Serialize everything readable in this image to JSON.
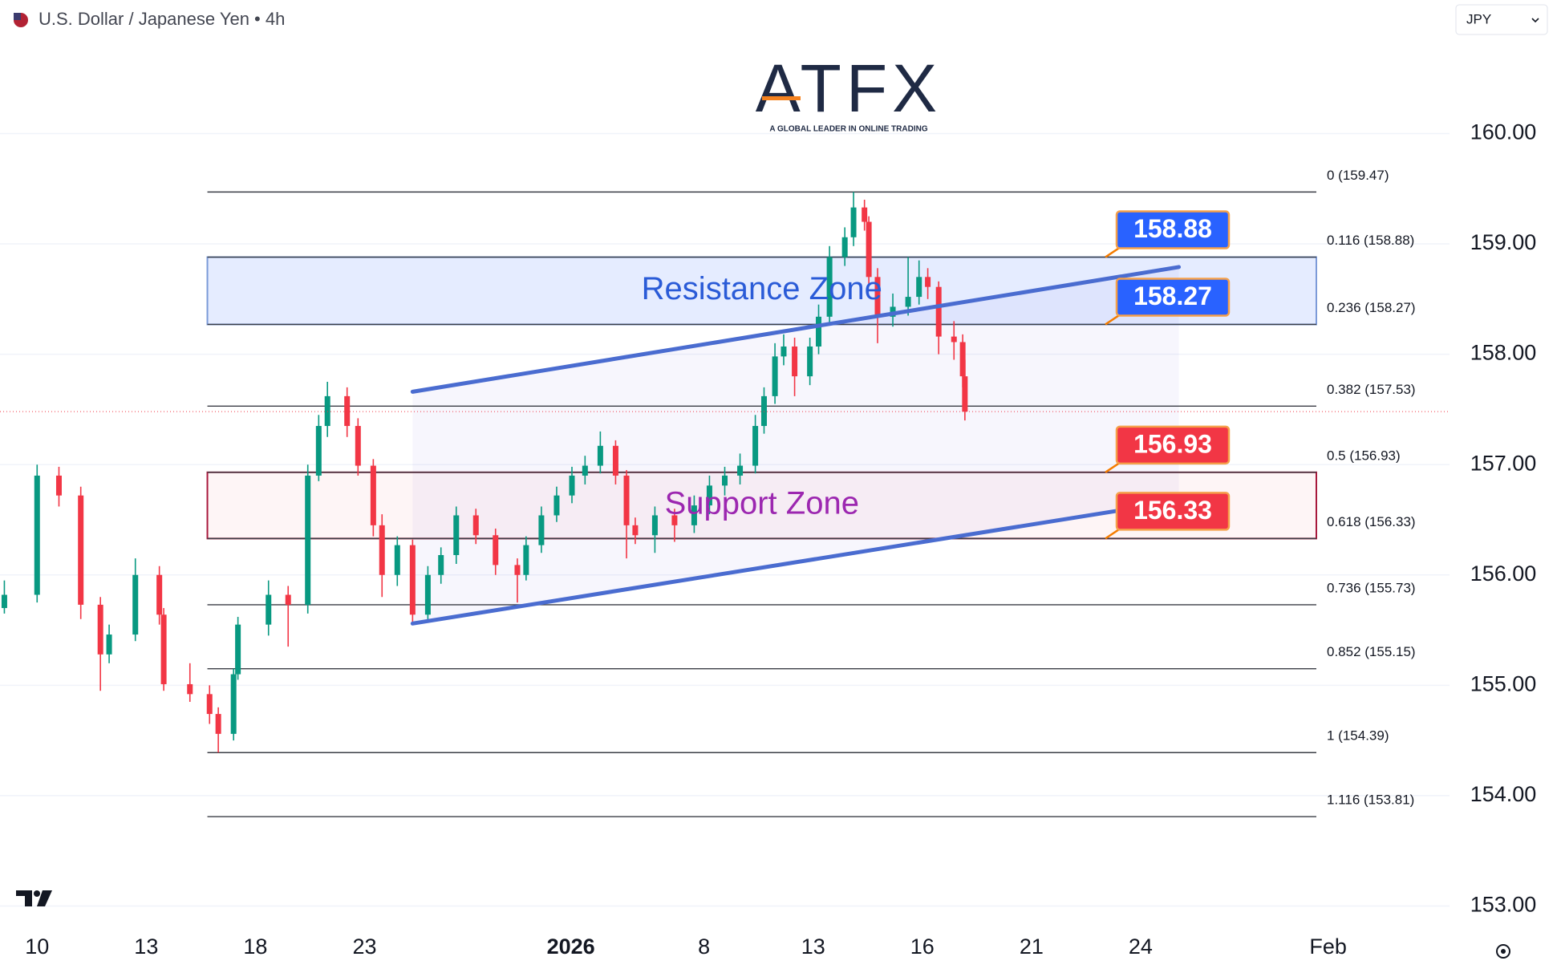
{
  "chart_data": {
    "type": "candlestick",
    "title": "U.S. Dollar / Japanese Yen • 4h",
    "currency": "JPY",
    "logo": {
      "name": "ATFX",
      "tagline": "A GLOBAL LEADER IN ONLINE TRADING"
    },
    "up_color": "#089981",
    "down_color": "#f23645",
    "xlim": [
      -1.7,
      64.7
    ],
    "ylim": [
      152.8,
      161.21
    ],
    "grid": true,
    "xticks": [
      {
        "value": 0,
        "label": "10"
      },
      {
        "value": 5,
        "label": "13"
      },
      {
        "value": 10,
        "label": "18"
      },
      {
        "value": 15,
        "label": "23"
      },
      {
        "value": 24.45,
        "label": "2026"
      },
      {
        "value": 30.55,
        "label": "8"
      },
      {
        "value": 35.55,
        "label": "13"
      },
      {
        "value": 40.55,
        "label": "16"
      },
      {
        "value": 45.55,
        "label": "21"
      },
      {
        "value": 50.55,
        "label": "24"
      },
      {
        "value": 59.14,
        "label": "Feb"
      }
    ],
    "yticks": [
      {
        "value": 153,
        "label": "153.00"
      },
      {
        "value": 154,
        "label": "154.00"
      },
      {
        "value": 155,
        "label": "155.00"
      },
      {
        "value": 156,
        "label": "156.00"
      },
      {
        "value": 157,
        "label": "157.00"
      },
      {
        "value": 158,
        "label": "158.00"
      },
      {
        "value": 159,
        "label": "159.00"
      },
      {
        "value": 160,
        "label": "160.00"
      }
    ],
    "candles": [
      [
        -1.5,
        155.7,
        155.95,
        155.65,
        155.82
      ],
      [
        0,
        155.82,
        157.0,
        155.75,
        156.9
      ],
      [
        1.0,
        156.9,
        156.98,
        156.62,
        156.72
      ],
      [
        2.0,
        156.72,
        156.8,
        155.6,
        155.73
      ],
      [
        2.9,
        155.73,
        155.8,
        154.95,
        155.28
      ],
      [
        3.3,
        155.28,
        155.55,
        155.2,
        155.46
      ],
      [
        4.5,
        155.46,
        156.15,
        155.4,
        156.0
      ],
      [
        5.6,
        156.0,
        156.08,
        155.55,
        155.64
      ],
      [
        5.8,
        155.64,
        155.7,
        154.95,
        155.01
      ],
      [
        7.0,
        155.01,
        155.2,
        154.85,
        154.92
      ],
      [
        7.9,
        154.92,
        155.0,
        154.65,
        154.74
      ],
      [
        8.3,
        154.74,
        154.8,
        154.39,
        154.56
      ],
      [
        9.0,
        154.56,
        155.15,
        154.5,
        155.1
      ],
      [
        9.2,
        155.1,
        155.62,
        155.05,
        155.55
      ],
      [
        10.6,
        155.55,
        155.95,
        155.45,
        155.82
      ],
      [
        11.5,
        155.82,
        155.9,
        155.35,
        155.73
      ],
      [
        12.4,
        155.73,
        157.0,
        155.65,
        156.9
      ],
      [
        12.9,
        156.9,
        157.45,
        156.85,
        157.35
      ],
      [
        13.3,
        157.35,
        157.75,
        157.25,
        157.62
      ],
      [
        14.2,
        157.62,
        157.7,
        157.25,
        157.35
      ],
      [
        14.7,
        157.35,
        157.42,
        156.9,
        156.99
      ],
      [
        15.4,
        156.99,
        157.05,
        156.35,
        156.45
      ],
      [
        15.8,
        156.45,
        156.55,
        155.8,
        156.0
      ],
      [
        16.5,
        156.0,
        156.35,
        155.9,
        156.27
      ],
      [
        17.2,
        156.27,
        156.32,
        155.55,
        155.64
      ],
      [
        17.9,
        155.64,
        156.08,
        155.58,
        156.0
      ],
      [
        18.5,
        156.0,
        156.25,
        155.92,
        156.18
      ],
      [
        19.2,
        156.18,
        156.62,
        156.1,
        156.54
      ],
      [
        20.1,
        156.54,
        156.6,
        156.28,
        156.36
      ],
      [
        21.0,
        156.36,
        156.42,
        156.0,
        156.09
      ],
      [
        22.0,
        156.09,
        156.15,
        155.75,
        156.0
      ],
      [
        22.4,
        156.0,
        156.35,
        155.95,
        156.27
      ],
      [
        23.1,
        156.27,
        156.62,
        156.2,
        156.54
      ],
      [
        23.8,
        156.54,
        156.8,
        156.48,
        156.72
      ],
      [
        24.5,
        156.72,
        156.98,
        156.65,
        156.9
      ],
      [
        25.1,
        156.9,
        157.08,
        156.82,
        156.99
      ],
      [
        25.8,
        156.99,
        157.3,
        156.92,
        157.17
      ],
      [
        26.5,
        157.17,
        157.22,
        156.82,
        156.9
      ],
      [
        27.0,
        156.9,
        156.95,
        156.15,
        156.45
      ],
      [
        27.4,
        156.45,
        156.52,
        156.28,
        156.36
      ],
      [
        28.3,
        156.36,
        156.62,
        156.2,
        156.54
      ],
      [
        29.2,
        156.54,
        156.6,
        156.3,
        156.45
      ],
      [
        30.1,
        156.45,
        156.72,
        156.38,
        156.63
      ],
      [
        30.8,
        156.63,
        156.9,
        156.55,
        156.81
      ],
      [
        31.5,
        156.81,
        156.98,
        156.72,
        156.9
      ],
      [
        32.2,
        156.9,
        157.1,
        156.82,
        156.99
      ],
      [
        32.9,
        156.99,
        157.45,
        156.92,
        157.35
      ],
      [
        33.3,
        157.35,
        157.7,
        157.28,
        157.62
      ],
      [
        33.8,
        157.62,
        158.1,
        157.55,
        157.98
      ],
      [
        34.2,
        157.98,
        158.18,
        157.9,
        158.07
      ],
      [
        34.7,
        158.07,
        158.15,
        157.62,
        157.8
      ],
      [
        35.4,
        157.8,
        158.15,
        157.72,
        158.07
      ],
      [
        35.8,
        158.07,
        158.45,
        158.0,
        158.34
      ],
      [
        36.3,
        158.34,
        158.98,
        158.28,
        158.88
      ],
      [
        37.0,
        158.88,
        159.15,
        158.8,
        159.06
      ],
      [
        37.4,
        159.06,
        159.47,
        158.98,
        159.33
      ],
      [
        37.9,
        159.33,
        159.4,
        159.12,
        159.2
      ],
      [
        38.1,
        159.2,
        159.25,
        158.62,
        158.7
      ],
      [
        38.5,
        158.7,
        158.78,
        158.1,
        158.34
      ],
      [
        39.2,
        158.34,
        158.55,
        158.25,
        158.43
      ],
      [
        39.9,
        158.43,
        158.88,
        158.35,
        158.52
      ],
      [
        40.4,
        158.52,
        158.85,
        158.45,
        158.7
      ],
      [
        40.8,
        158.7,
        158.78,
        158.5,
        158.61
      ],
      [
        41.3,
        158.61,
        158.66,
        158.0,
        158.16
      ],
      [
        42.0,
        158.16,
        158.3,
        157.95,
        158.11
      ],
      [
        42.4,
        158.11,
        158.18,
        157.7,
        157.8
      ],
      [
        42.5,
        157.8,
        157.95,
        157.4,
        157.48
      ]
    ],
    "fib_x": [
      7.8,
      58.6
    ],
    "fib_levels": [
      {
        "value": 159.47,
        "label": "0 (159.47)"
      },
      {
        "value": 158.88,
        "label": "0.116 (158.88)"
      },
      {
        "value": 158.27,
        "label": "0.236 (158.27)"
      },
      {
        "value": 157.53,
        "label": "0.382 (157.53)"
      },
      {
        "value": 156.93,
        "label": "0.5 (156.93)"
      },
      {
        "value": 156.33,
        "label": "0.618 (156.33)"
      },
      {
        "value": 155.73,
        "label": "0.736 (155.73)"
      },
      {
        "value": 155.15,
        "label": "0.852 (155.15)"
      },
      {
        "value": 154.39,
        "label": "1 (154.39)"
      },
      {
        "value": 153.81,
        "label": "1.116 (153.81)"
      }
    ],
    "zones": [
      {
        "label": "Resistance Zone",
        "range": [
          158.27,
          158.88
        ],
        "color": "#2962ff",
        "border": "#7b9ad8",
        "text_color": "#2a5bd7"
      },
      {
        "label": "Support Zone",
        "range": [
          156.33,
          156.93
        ],
        "color": "#f23645",
        "border": "#a8183c",
        "text_color": "#9c27b0"
      }
    ],
    "trend_lines": [
      {
        "x": [
          17.2,
          52.3
        ],
        "y": [
          157.66,
          158.79
        ],
        "color": "#4a6cd0"
      },
      {
        "x": [
          17.2,
          52.3
        ],
        "y": [
          155.56,
          156.67
        ],
        "color": "#4a6cd0"
      }
    ],
    "price_tags": [
      {
        "value": 158.88,
        "color": "#2962ff"
      },
      {
        "value": 158.27,
        "color": "#2962ff"
      },
      {
        "value": 156.93,
        "color": "#f23645"
      },
      {
        "value": 156.33,
        "color": "#f23645"
      }
    ]
  }
}
